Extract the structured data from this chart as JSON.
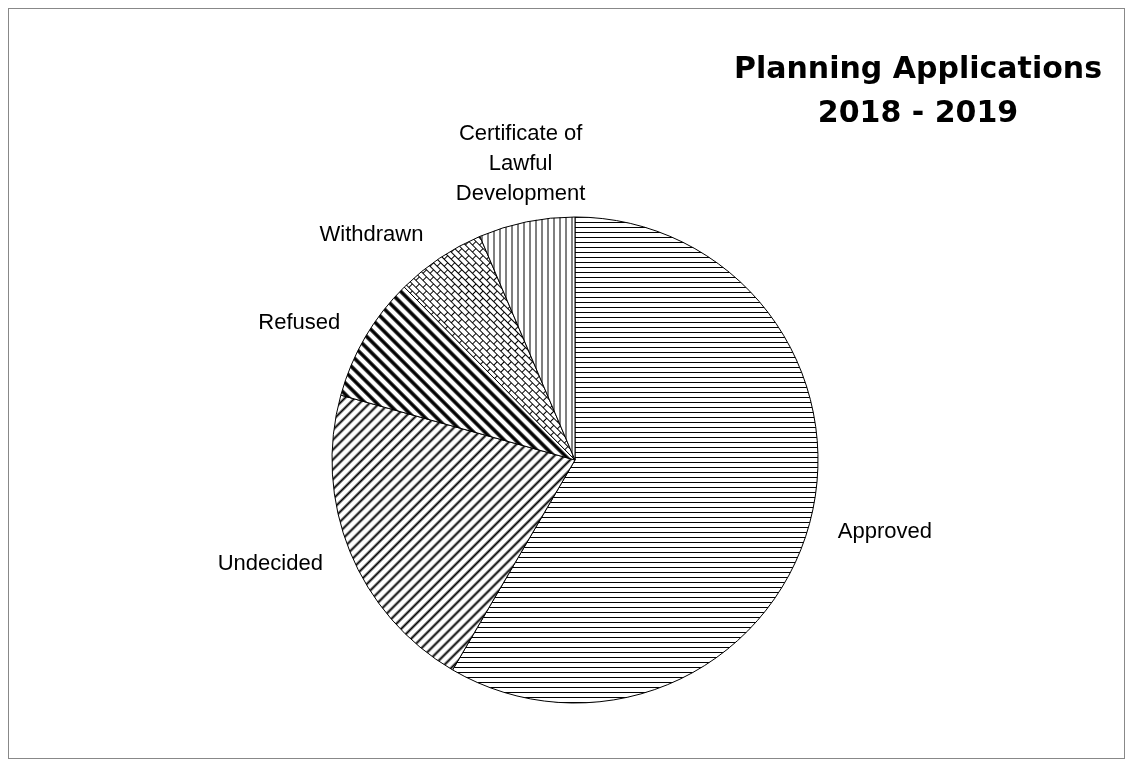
{
  "chart_data": {
    "type": "pie",
    "title": "Planning Applications 2018 - 2019",
    "categories": [
      "Approved",
      "Undecided",
      "Refused",
      "Withdrawn",
      "Certificate of Lawful Development"
    ],
    "values": [
      58.4,
      20.9,
      8.3,
      6.0,
      6.4
    ],
    "colors": [
      "#000000",
      "#000000",
      "#000000",
      "#000000",
      "#000000"
    ]
  }
}
